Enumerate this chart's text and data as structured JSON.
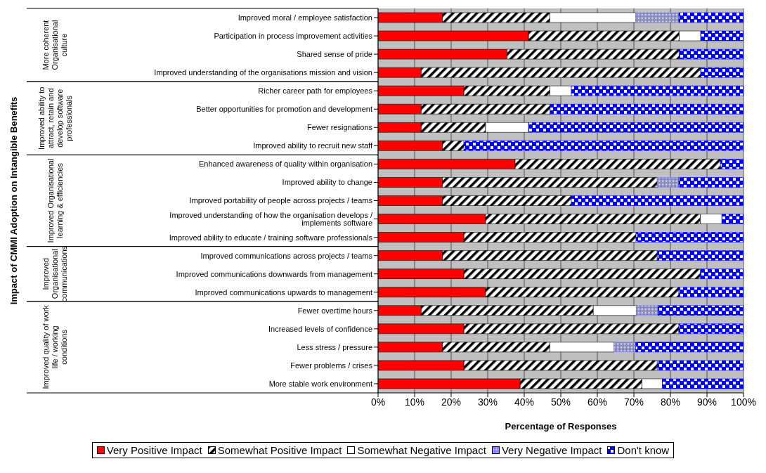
{
  "chart_data": {
    "type": "bar",
    "orientation": "horizontal",
    "stacked": true,
    "xlabel": "Percentage of Responses",
    "categories": [
      "Improved moral / employee satisfaction",
      "Participation in process improvement activities",
      "Shared sense of pride",
      "Improved understanding of the organisations mission and vision",
      "Richer career path for employees",
      "Better opportunities for promotion and development",
      "Fewer resignations",
      "Improved ability to recruit new staff",
      "Enhanced awareness of quality within organisation",
      "Improved ability to change",
      "Improved portability of people across projects /  teams",
      "Improved understanding of how the organisation develops / implements software",
      "Improved ability to educate / training software professionals",
      "Improved communications across projects / teams",
      "Improved communications downwards from  management",
      "Improved communications upwards to management",
      "Fewer overtime hours",
      "Increased levels of confidence",
      "Less stress / pressure",
      "Fewer problems / crises",
      "More stable work environment"
    ],
    "series": [
      {
        "name": "Very Positive Impact",
        "color": "#ff0000",
        "values": [
          17.6,
          41.2,
          35.3,
          11.8,
          23.5,
          11.8,
          11.8,
          17.6,
          37.5,
          17.6,
          17.6,
          29.4,
          23.5,
          17.6,
          23.5,
          29.4,
          11.8,
          23.5,
          17.6,
          23.5,
          38.9
        ]
      },
      {
        "name": "Somewhat Positive Impact",
        "color": "#000000",
        "values": [
          29.4,
          41.2,
          47.1,
          76.5,
          23.5,
          35.3,
          17.6,
          5.9,
          56.2,
          58.8,
          35.3,
          58.8,
          47.1,
          58.8,
          64.7,
          52.9,
          47.1,
          58.8,
          29.4,
          52.9,
          33.3
        ]
      },
      {
        "name": "Somewhat Negative Impact",
        "color": "#ffffff",
        "values": [
          23.5,
          5.9,
          0,
          0,
          5.9,
          0,
          11.8,
          0,
          0,
          0,
          0,
          5.9,
          0,
          0,
          0,
          0,
          11.8,
          0,
          17.6,
          0,
          5.6
        ]
      },
      {
        "name": "Very Negative Impact",
        "color": "#8080ff",
        "values": [
          11.8,
          0,
          0,
          0,
          0,
          0,
          0,
          0,
          0,
          5.9,
          0,
          0,
          0,
          0,
          0,
          0,
          5.9,
          0,
          5.9,
          0,
          0
        ]
      },
      {
        "name": "Don't know",
        "color": "#0000ff",
        "values": [
          17.7,
          11.7,
          17.6,
          11.7,
          47.1,
          52.9,
          58.8,
          76.5,
          6.3,
          17.7,
          47.1,
          5.9,
          29.4,
          23.6,
          11.8,
          17.7,
          23.4,
          17.7,
          29.5,
          23.6,
          22.2
        ]
      }
    ],
    "annotations": [
      "Impact of CMMI Adoption on Intangible Benefits",
      "More coherent Organisational culture",
      "Improved ability to attract, retain and develop software professionals",
      "Improved Organisational learning & efficiencies",
      "Improved Organisational communications",
      "Improved quality of work life / working conditions"
    ],
    "xlim": [
      0,
      100
    ],
    "xticks": [
      {
        "value": 0,
        "label": "0%"
      },
      {
        "value": 10,
        "label": "10%"
      },
      {
        "value": 20,
        "label": "20%"
      },
      {
        "value": 30,
        "label": "30%"
      },
      {
        "value": 40,
        "label": "40%"
      },
      {
        "value": 50,
        "label": "50%"
      },
      {
        "value": 60,
        "label": "60%"
      },
      {
        "value": 70,
        "label": "70%"
      },
      {
        "value": 80,
        "label": "80%"
      },
      {
        "value": 90,
        "label": "90%"
      },
      {
        "value": 100,
        "label": "100%"
      }
    ],
    "grid": "x",
    "legend": "bottom"
  }
}
